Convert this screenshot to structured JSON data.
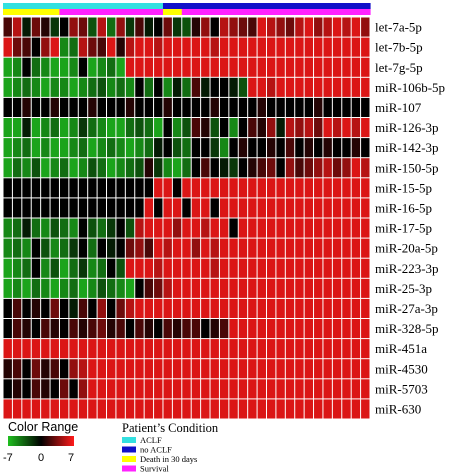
{
  "chart_data": {
    "type": "heatmap",
    "rows": [
      "let-7a-5p",
      "let-7b-5p",
      "let-7g-5p",
      "miR-106b-5p",
      "miR-107",
      "miR-126-3p",
      "miR-142-3p",
      "miR-150-5p",
      "miR-15-5p",
      "miR-16-5p",
      "miR-17-5p",
      "miR-20a-5p",
      "miR-223-3p",
      "miR-25-3p",
      "miR-27a-3p",
      "miR-328-5p",
      "miR-451a",
      "miR-4530",
      "miR-5703",
      "miR-630"
    ],
    "n_columns": 39,
    "value_range": [
      -7,
      7
    ],
    "color_scale": {
      "low": "#1fbf1f",
      "mid": "#000000",
      "high": "#ff1a1a"
    },
    "values": [
      [
        2,
        5,
        -1,
        3,
        1,
        -2,
        0,
        4,
        3,
        -3,
        5,
        -4,
        4,
        -2,
        2,
        -1,
        0,
        3,
        -2,
        -3,
        1,
        4,
        0,
        5,
        4,
        3,
        2,
        6,
        5,
        4,
        3,
        5,
        6,
        4,
        5,
        6,
        5,
        6,
        4
      ],
      [
        6,
        3,
        2,
        0,
        4,
        6,
        -5,
        -4,
        5,
        3,
        2,
        6,
        1,
        5,
        6,
        6,
        5,
        6,
        6,
        6,
        6,
        6,
        5,
        6,
        6,
        6,
        6,
        6,
        6,
        6,
        6,
        6,
        6,
        6,
        6,
        6,
        6,
        6,
        6
      ],
      [
        -6,
        -5,
        0,
        -4,
        -5,
        -6,
        -6,
        -5,
        0,
        -6,
        -5,
        -4,
        -6,
        6,
        6,
        6,
        6,
        6,
        6,
        6,
        6,
        6,
        6,
        6,
        6,
        6,
        6,
        6,
        6,
        6,
        6,
        6,
        6,
        6,
        6,
        6,
        6,
        6,
        6
      ],
      [
        -6,
        -5,
        -4,
        -5,
        -6,
        -5,
        -5,
        -6,
        -5,
        -4,
        -3,
        -5,
        -4,
        -5,
        0,
        -4,
        0,
        -5,
        -1,
        -4,
        2,
        -1,
        0,
        0,
        -1,
        -3,
        6,
        6,
        5,
        6,
        6,
        6,
        6,
        6,
        6,
        6,
        6,
        6,
        6
      ],
      [
        0,
        0,
        1,
        0,
        0,
        1,
        0,
        0,
        0,
        1,
        0,
        0,
        0,
        1,
        0,
        0,
        0,
        1,
        0,
        0,
        0,
        0,
        1,
        0,
        0,
        0,
        0,
        1,
        0,
        0,
        0,
        0,
        0,
        1,
        0,
        0,
        0,
        0,
        0
      ],
      [
        -6,
        -6,
        -1,
        -6,
        -5,
        -4,
        -6,
        -5,
        -2,
        -4,
        -5,
        -6,
        -6,
        -4,
        -3,
        -4,
        -6,
        0,
        -5,
        -3,
        2,
        1,
        -3,
        0,
        -5,
        0,
        2,
        1,
        4,
        -1,
        5,
        4,
        5,
        3,
        6,
        5,
        6,
        5,
        6
      ],
      [
        -6,
        -5,
        -4,
        -6,
        -5,
        -6,
        -6,
        -5,
        -4,
        -6,
        -5,
        -4,
        -5,
        -6,
        -5,
        -4,
        -1,
        0,
        -3,
        -4,
        0,
        0,
        -2,
        -5,
        0,
        1,
        0,
        0,
        1,
        0,
        2,
        0,
        1,
        0,
        1,
        0,
        0,
        1,
        0
      ],
      [
        -6,
        -4,
        -5,
        -3,
        -6,
        -5,
        -4,
        -6,
        -5,
        -3,
        -4,
        -6,
        -5,
        -4,
        -3,
        1,
        -2,
        -5,
        -6,
        -4,
        0,
        2,
        0,
        -1,
        -2,
        0,
        1,
        2,
        3,
        0,
        4,
        2,
        3,
        4,
        5,
        3,
        4,
        6,
        5
      ],
      [
        0,
        0,
        0,
        0,
        0,
        0,
        0,
        0,
        0,
        0,
        0,
        0,
        0,
        0,
        0,
        0,
        6,
        6,
        0,
        6,
        6,
        6,
        6,
        6,
        6,
        6,
        6,
        6,
        6,
        6,
        6,
        6,
        6,
        6,
        6,
        6,
        6,
        6,
        6
      ],
      [
        0,
        0,
        0,
        0,
        0,
        0,
        0,
        0,
        0,
        0,
        0,
        0,
        0,
        0,
        0,
        6,
        0,
        6,
        6,
        0,
        6,
        6,
        0,
        6,
        6,
        6,
        6,
        6,
        6,
        6,
        6,
        6,
        6,
        6,
        6,
        6,
        6,
        6,
        6
      ],
      [
        -5,
        -4,
        -1,
        -4,
        -5,
        -3,
        -4,
        -5,
        0,
        -3,
        -4,
        -2,
        0,
        -3,
        5,
        6,
        6,
        6,
        4,
        6,
        6,
        5,
        6,
        6,
        0,
        6,
        6,
        6,
        6,
        6,
        6,
        6,
        6,
        6,
        6,
        6,
        6,
        6,
        6
      ],
      [
        -5,
        -4,
        -5,
        0,
        -3,
        -5,
        -4,
        -2,
        0,
        -4,
        0,
        -1,
        0,
        3,
        4,
        2,
        6,
        5,
        6,
        6,
        4,
        6,
        5,
        6,
        6,
        6,
        6,
        6,
        6,
        6,
        6,
        6,
        6,
        6,
        6,
        6,
        6,
        6,
        6
      ],
      [
        -6,
        -5,
        -4,
        0,
        -5,
        -3,
        -6,
        -4,
        -2,
        -5,
        -4,
        0,
        -3,
        6,
        6,
        6,
        5,
        6,
        6,
        6,
        6,
        6,
        5,
        6,
        6,
        6,
        6,
        6,
        6,
        6,
        6,
        6,
        6,
        6,
        6,
        6,
        6,
        6,
        6
      ],
      [
        -6,
        -5,
        -6,
        -4,
        -5,
        -6,
        -5,
        -4,
        -6,
        -5,
        -3,
        -4,
        -5,
        -6,
        0,
        2,
        3,
        5,
        6,
        6,
        6,
        6,
        6,
        6,
        6,
        6,
        6,
        6,
        6,
        6,
        6,
        6,
        6,
        6,
        6,
        6,
        6,
        6,
        6
      ],
      [
        0,
        2,
        0,
        1,
        0,
        3,
        0,
        -1,
        2,
        0,
        4,
        0,
        3,
        5,
        6,
        6,
        6,
        6,
        6,
        6,
        6,
        6,
        6,
        6,
        6,
        6,
        6,
        6,
        6,
        6,
        6,
        6,
        6,
        6,
        6,
        6,
        6,
        6,
        6
      ],
      [
        0,
        2,
        1,
        0,
        2,
        1,
        0,
        2,
        1,
        2,
        3,
        1,
        2,
        0,
        2,
        1,
        0,
        2,
        1,
        2,
        2,
        0,
        1,
        2,
        6,
        6,
        6,
        6,
        6,
        6,
        6,
        6,
        6,
        6,
        6,
        6,
        6,
        6,
        6
      ],
      [
        6,
        6,
        6,
        6,
        6,
        6,
        6,
        6,
        6,
        6,
        6,
        6,
        6,
        6,
        6,
        6,
        6,
        6,
        6,
        6,
        6,
        6,
        6,
        6,
        6,
        6,
        6,
        6,
        6,
        6,
        6,
        6,
        6,
        6,
        6,
        6,
        6,
        6,
        6
      ],
      [
        1,
        2,
        0,
        3,
        1,
        2,
        0,
        4,
        5,
        6,
        6,
        6,
        6,
        6,
        6,
        6,
        6,
        6,
        6,
        6,
        6,
        6,
        6,
        6,
        6,
        6,
        6,
        6,
        6,
        6,
        6,
        6,
        6,
        6,
        6,
        6,
        6,
        6,
        6
      ],
      [
        0,
        1,
        0,
        2,
        1,
        0,
        3,
        0,
        4,
        6,
        6,
        6,
        6,
        6,
        6,
        6,
        6,
        6,
        6,
        6,
        6,
        6,
        6,
        6,
        6,
        6,
        6,
        6,
        6,
        6,
        6,
        6,
        6,
        6,
        6,
        6,
        6,
        6,
        6
      ],
      [
        6,
        6,
        6,
        6,
        6,
        6,
        6,
        6,
        6,
        6,
        6,
        6,
        6,
        6,
        6,
        6,
        6,
        6,
        6,
        6,
        6,
        6,
        6,
        6,
        6,
        6,
        6,
        6,
        6,
        6,
        6,
        6,
        6,
        6,
        6,
        6,
        6,
        6,
        6
      ]
    ],
    "condition_bar_top": [
      "ACLF",
      "ACLF",
      "ACLF",
      "ACLF",
      "ACLF",
      "ACLF",
      "ACLF",
      "ACLF",
      "ACLF",
      "ACLF",
      "ACLF",
      "ACLF",
      "ACLF",
      "ACLF",
      "ACLF",
      "ACLF",
      "ACLF",
      "no ACLF",
      "no ACLF",
      "no ACLF",
      "no ACLF",
      "no ACLF",
      "no ACLF",
      "no ACLF",
      "no ACLF",
      "no ACLF",
      "no ACLF",
      "no ACLF",
      "no ACLF",
      "no ACLF",
      "no ACLF",
      "no ACLF",
      "no ACLF",
      "no ACLF",
      "no ACLF",
      "no ACLF",
      "no ACLF",
      "no ACLF",
      "no ACLF"
    ],
    "condition_bar_bottom": [
      "Death in 30 days",
      "Death in 30 days",
      "Death in 30 days",
      "Death in 30 days",
      "Death in 30 days",
      "Death in 30 days",
      "Survival",
      "Survival",
      "Survival",
      "Survival",
      "Survival",
      "Survival",
      "Survival",
      "Survival",
      "Survival",
      "Survival",
      "Survival",
      "Death in 30 days",
      "Death in 30 days",
      "Survival",
      "Survival",
      "Survival",
      "Survival",
      "Survival",
      "Survival",
      "Survival",
      "Survival",
      "Survival",
      "Survival",
      "Survival",
      "Survival",
      "Survival",
      "Survival",
      "Survival",
      "Survival",
      "Survival",
      "Survival",
      "Survival",
      "Survival"
    ],
    "legend": {
      "color_title": "Color Range",
      "ticks": [
        "-7",
        "0",
        "7"
      ],
      "condition_title": "Patient’s Condition",
      "conditions": [
        {
          "label": "ACLF",
          "color": "#33e0e0"
        },
        {
          "label": "no ACLF",
          "color": "#1010c8"
        },
        {
          "label": "Death in 30 days",
          "color": "#ffff00"
        },
        {
          "label": "Survival",
          "color": "#ff22ff"
        }
      ]
    }
  }
}
